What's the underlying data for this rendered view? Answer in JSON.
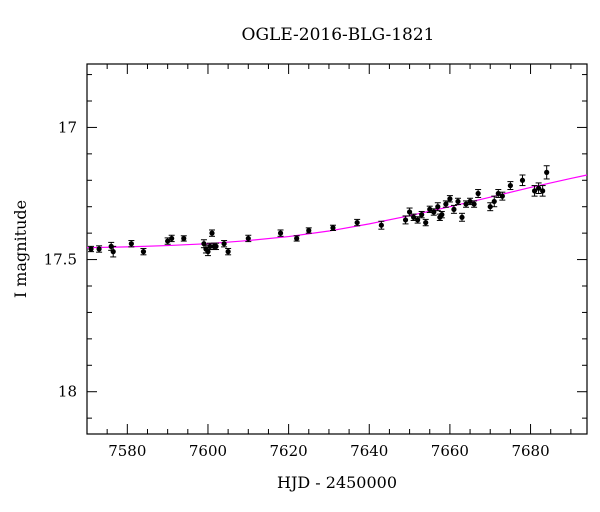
{
  "chart_data": {
    "type": "scatter",
    "title": "OGLE-2016-BLG-1821",
    "xlabel": "HJD - 2450000",
    "ylabel": "I magnitude",
    "xlim": [
      7570,
      7694
    ],
    "ylim": [
      18.16,
      16.76
    ],
    "y_inverted": true,
    "grid": false,
    "xticks_major": [
      7580,
      7600,
      7620,
      7640,
      7660,
      7680
    ],
    "xticks_minor_step": 5,
    "yticks_major": [
      17,
      17.5,
      18
    ],
    "yticks_minor_step": 0.1,
    "colors": {
      "points": "#000000",
      "model": "#ff00ff"
    },
    "series": [
      {
        "kind": "points",
        "x": [
          7571,
          7573,
          7576,
          7576.5,
          7581,
          7584,
          7590,
          7591,
          7594,
          7599,
          7599.5,
          7600,
          7600.5,
          7601,
          7601.5,
          7602,
          7604,
          7605,
          7610,
          7618,
          7622,
          7625,
          7631,
          7637,
          7643,
          7649,
          7650,
          7651,
          7652,
          7653,
          7654,
          7655,
          7656,
          7657,
          7657.5,
          7658,
          7659,
          7660,
          7661,
          7662,
          7663,
          7664,
          7665,
          7666,
          7667,
          7670,
          7671,
          7672,
          7673,
          7675,
          7678,
          7681,
          7682,
          7683,
          7684
        ],
        "y": [
          17.46,
          17.46,
          17.45,
          17.47,
          17.44,
          17.47,
          17.43,
          17.42,
          17.42,
          17.44,
          17.46,
          17.47,
          17.45,
          17.4,
          17.45,
          17.45,
          17.44,
          17.47,
          17.42,
          17.4,
          17.42,
          17.39,
          17.38,
          17.36,
          17.37,
          17.35,
          17.32,
          17.34,
          17.35,
          17.33,
          17.36,
          17.31,
          17.32,
          17.3,
          17.34,
          17.33,
          17.29,
          17.27,
          17.31,
          17.28,
          17.34,
          17.29,
          17.28,
          17.29,
          17.25,
          17.3,
          17.28,
          17.25,
          17.26,
          17.22,
          17.2,
          17.24,
          17.23,
          17.24,
          17.17
        ],
        "yerr": [
          0.01,
          0.012,
          0.015,
          0.02,
          0.012,
          0.012,
          0.012,
          0.012,
          0.01,
          0.015,
          0.015,
          0.015,
          0.012,
          0.012,
          0.012,
          0.012,
          0.012,
          0.012,
          0.012,
          0.012,
          0.01,
          0.01,
          0.01,
          0.012,
          0.015,
          0.015,
          0.015,
          0.012,
          0.012,
          0.012,
          0.012,
          0.012,
          0.012,
          0.015,
          0.012,
          0.012,
          0.012,
          0.012,
          0.015,
          0.012,
          0.015,
          0.012,
          0.012,
          0.012,
          0.015,
          0.015,
          0.02,
          0.015,
          0.015,
          0.015,
          0.02,
          0.02,
          0.02,
          0.02,
          0.025
        ]
      },
      {
        "kind": "model",
        "x": [
          7570,
          7580,
          7590,
          7600,
          7610,
          7620,
          7630,
          7640,
          7650,
          7660,
          7670,
          7680,
          7690,
          7694
        ],
        "y": [
          17.455,
          17.452,
          17.447,
          17.44,
          17.428,
          17.413,
          17.392,
          17.365,
          17.334,
          17.3,
          17.264,
          17.227,
          17.193,
          17.18
        ]
      }
    ]
  }
}
